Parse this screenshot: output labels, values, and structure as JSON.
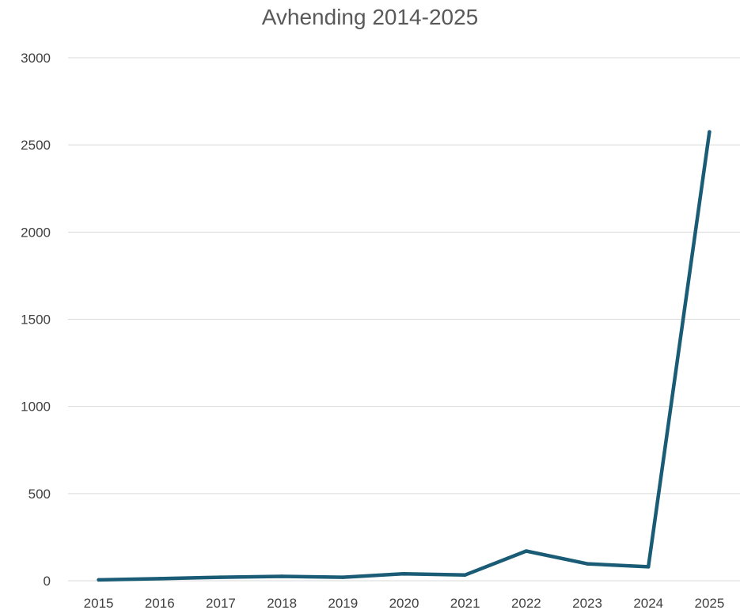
{
  "chart_data": {
    "type": "line",
    "title": "Avhending 2014-2025",
    "xlabel": "",
    "ylabel": "",
    "categories": [
      "2015",
      "2016",
      "2017",
      "2018",
      "2019",
      "2020",
      "2021",
      "2022",
      "2023",
      "2024",
      "2025"
    ],
    "series": [
      {
        "values": [
          5,
          12,
          20,
          25,
          20,
          40,
          33,
          170,
          97,
          80,
          2575
        ]
      }
    ],
    "ylim": [
      0,
      3000
    ],
    "yticks": [
      0,
      500,
      1000,
      1500,
      2000,
      2500,
      3000
    ],
    "grid": true,
    "legend": "none",
    "line_color": "#1a5b76"
  }
}
